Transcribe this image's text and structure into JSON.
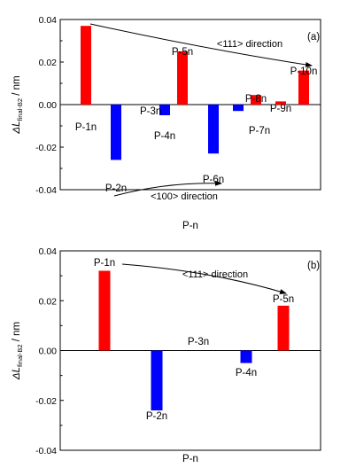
{
  "chart_data": [
    {
      "type": "bar",
      "panel_label": "(a)",
      "xlabel": "P-n",
      "ylabel_main": "ΔL",
      "ylabel_sub": "final-B2",
      "ylabel_unit": " / nm",
      "ylim": [
        -0.04,
        0.04
      ],
      "yticks": [
        "0.04",
        "0.02",
        "0.00",
        "-0.02",
        "-0.04"
      ],
      "yticks_values": [
        0.04,
        0.02,
        0.0,
        -0.02,
        -0.04
      ],
      "categories": [
        "P-1n",
        "P-2n",
        "P-3n",
        "P-4n",
        "P-5n",
        "P-6n",
        "P-7n",
        "P-8n",
        "P-9n",
        "P-10n"
      ],
      "values": [
        0.037,
        -0.026,
        0.0,
        -0.005,
        0.025,
        -0.023,
        -0.003,
        0.0045,
        0.0015,
        0.016
      ],
      "colors": [
        "#ff0000",
        "#0000ff",
        "#0000ff",
        "#0000ff",
        "#ff0000",
        "#0000ff",
        "#0000ff",
        "#ff0000",
        "#ff0000",
        "#ff0000"
      ],
      "annotations": [
        "<111> direction",
        "<100> direction"
      ]
    },
    {
      "type": "bar",
      "panel_label": "(b)",
      "xlabel": "P-n",
      "ylabel_main": "ΔL",
      "ylabel_sub": "final-B2",
      "ylabel_unit": " / nm",
      "ylim": [
        -0.04,
        0.04
      ],
      "yticks": [
        "0.04",
        "0.02",
        "0.00",
        "-0.02",
        "-0.04"
      ],
      "yticks_values": [
        0.04,
        0.02,
        0.0,
        -0.02,
        -0.04
      ],
      "categories": [
        "P-1n",
        "P-2n",
        "P-3n",
        "P-4n",
        "P-5n"
      ],
      "values": [
        0.032,
        -0.024,
        0.0,
        -0.005,
        0.018
      ],
      "colors": [
        "#ff0000",
        "#0000ff",
        "#0000ff",
        "#0000ff",
        "#ff0000"
      ],
      "annotations": [
        "<111> direction"
      ]
    }
  ]
}
